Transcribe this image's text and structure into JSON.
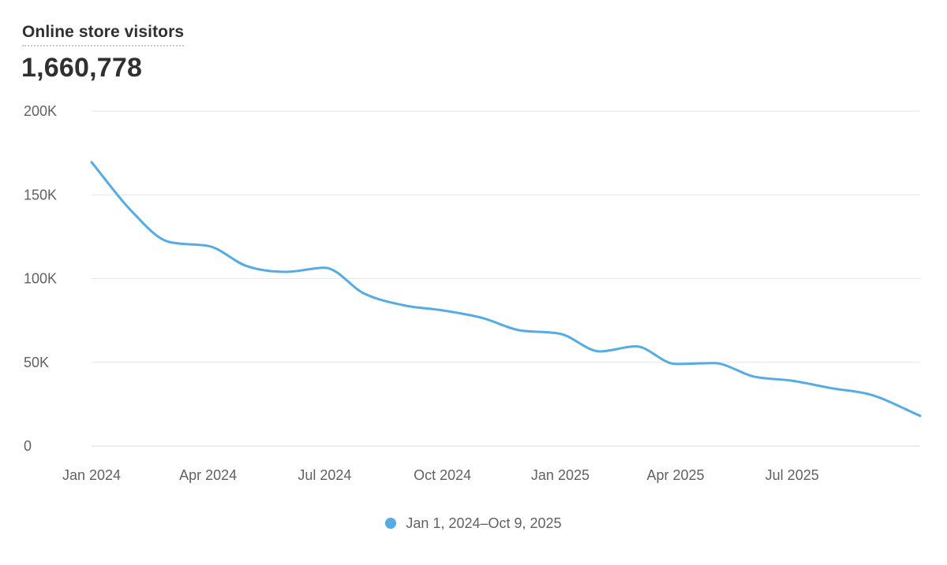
{
  "header": {
    "title": "Online store visitors",
    "total": "1,660,778"
  },
  "colors": {
    "series": "#55ace5",
    "grid": "#e6e6e6",
    "text": "#616161"
  },
  "legend": {
    "label": "Jan 1, 2024–Oct 9, 2025",
    "icon": "dot-icon"
  },
  "chart_data": {
    "type": "line",
    "title": "Online store visitors",
    "xlabel": "",
    "ylabel": "",
    "ylim": [
      0,
      200000
    ],
    "yticks": [
      0,
      50000,
      100000,
      150000,
      200000
    ],
    "ytick_labels": [
      "0",
      "50K",
      "100K",
      "150K",
      "200K"
    ],
    "xlim": [
      "2024-01-01",
      "2025-10-09"
    ],
    "xticks": [
      "2024-01-01",
      "2024-04-01",
      "2024-07-01",
      "2024-10-01",
      "2025-01-01",
      "2025-04-01",
      "2025-07-01"
    ],
    "xtick_labels": [
      "Jan 2024",
      "Apr 2024",
      "Jul 2024",
      "Oct 2024",
      "Jan 2025",
      "Apr 2025",
      "Jul 2025"
    ],
    "grid": true,
    "legend_position": "bottom-center",
    "series": [
      {
        "name": "Jan 1, 2024–Oct 9, 2025",
        "points": [
          [
            "2024-01-01",
            169500
          ],
          [
            "2024-02-01",
            140500
          ],
          [
            "2024-03-01",
            122000
          ],
          [
            "2024-04-01",
            119500
          ],
          [
            "2024-05-01",
            107500
          ],
          [
            "2024-06-01",
            104000
          ],
          [
            "2024-07-01",
            106500
          ],
          [
            "2024-08-01",
            91000
          ],
          [
            "2024-09-01",
            84000
          ],
          [
            "2024-10-01",
            81000
          ],
          [
            "2024-11-01",
            76500
          ],
          [
            "2024-12-01",
            69000
          ],
          [
            "2025-01-01",
            67000
          ],
          [
            "2025-02-01",
            56500
          ],
          [
            "2025-03-01",
            59500
          ],
          [
            "2025-04-01",
            49000
          ],
          [
            "2025-05-01",
            49500
          ],
          [
            "2025-06-01",
            41500
          ],
          [
            "2025-07-01",
            39000
          ],
          [
            "2025-08-01",
            34500
          ],
          [
            "2025-09-01",
            30500
          ],
          [
            "2025-10-09",
            18000
          ]
        ]
      }
    ]
  }
}
